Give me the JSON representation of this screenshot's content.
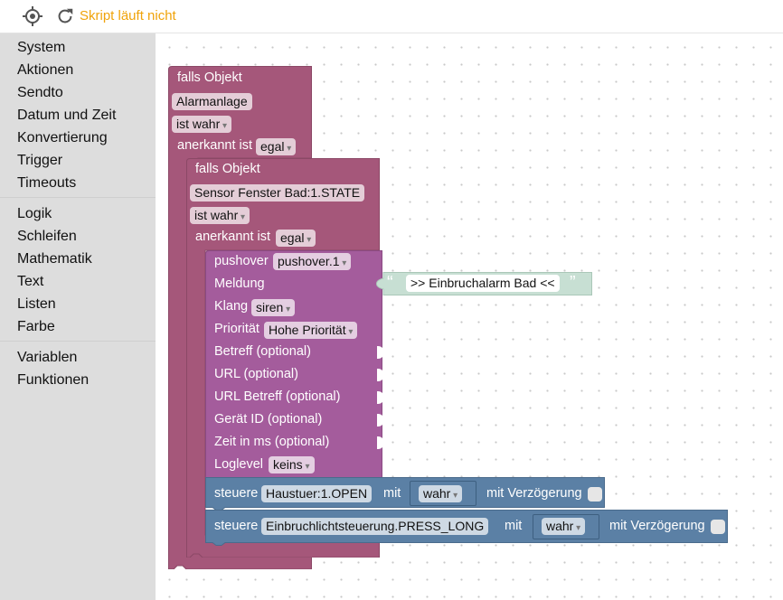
{
  "header": {
    "status": "Skript läuft nicht"
  },
  "toolbox": {
    "group1": [
      "System",
      "Aktionen",
      "Sendto",
      "Datum und Zeit",
      "Konvertierung",
      "Trigger",
      "Timeouts"
    ],
    "group2": [
      "Logik",
      "Schleifen",
      "Mathematik",
      "Text",
      "Listen",
      "Farbe"
    ],
    "group3": [
      "Variablen",
      "Funktionen"
    ]
  },
  "colors": {
    "outer_block": "#a5577a",
    "pushover_block": "#a45c9c",
    "control_block": "#5b80a5",
    "text_block": "#c7dfd3",
    "status": "#f0a30a"
  },
  "blocks": {
    "outer": {
      "title": "falls Objekt",
      "object": "Alarmanlage",
      "condition": "ist wahr",
      "ack_label": "anerkannt ist",
      "ack_value": "egal"
    },
    "inner": {
      "title": "falls Objekt",
      "object": "Sensor Fenster Bad:1.STATE",
      "condition": "ist wahr",
      "ack_label": "anerkannt ist",
      "ack_value": "egal"
    },
    "pushover": {
      "label": "pushover",
      "instance": "pushover.1",
      "meldung": "Meldung",
      "meldung_text": ">> Einbruchalarm Bad <<",
      "klang": "Klang",
      "klang_value": "siren",
      "prioritaet": "Priorität",
      "prioritaet_value": "Hohe Priorität",
      "betreff": "Betreff (optional)",
      "url": "URL (optional)",
      "url_betreff": "URL Betreff (optional)",
      "geraet": "Gerät ID (optional)",
      "zeit": "Zeit in ms (optional)",
      "loglevel": "Loglevel",
      "loglevel_value": "keins"
    },
    "control1": {
      "label": "steuere",
      "object": "Haustuer:1.OPEN",
      "mit": "mit",
      "value": "wahr",
      "delay": "mit Verzögerung"
    },
    "control2": {
      "label": "steuere",
      "object": "Einbruchlichtsteuerung.PRESS_LONG",
      "mit": "mit",
      "value": "wahr",
      "delay": "mit Verzögerung"
    }
  }
}
